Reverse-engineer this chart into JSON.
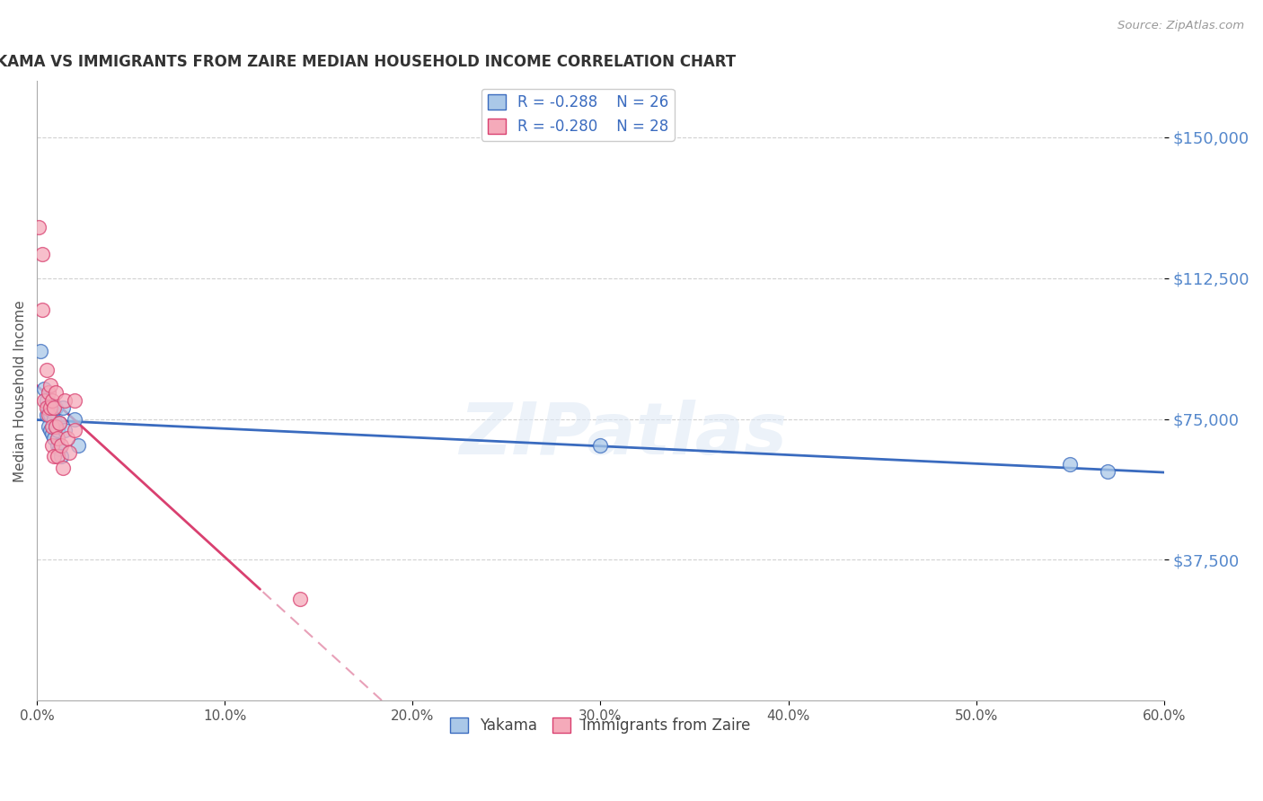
{
  "title": "YAKAMA VS IMMIGRANTS FROM ZAIRE MEDIAN HOUSEHOLD INCOME CORRELATION CHART",
  "source": "Source: ZipAtlas.com",
  "ylabel": "Median Household Income",
  "ytick_labels": [
    "$37,500",
    "$75,000",
    "$112,500",
    "$150,000"
  ],
  "ytick_values": [
    37500,
    75000,
    112500,
    150000
  ],
  "ymin": 0,
  "ymax": 165000,
  "xmin": 0.0,
  "xmax": 0.6,
  "legend_r1": "-0.288",
  "legend_n1": "26",
  "legend_r2": "-0.280",
  "legend_n2": "28",
  "series1_label": "Yakama",
  "series2_label": "Immigrants from Zaire",
  "color1": "#aac8e8",
  "color2": "#f5aaba",
  "line1_color": "#3a6bbf",
  "line2_color": "#d94070",
  "line2_dashed_color": "#e8a0b8",
  "background": "#ffffff",
  "grid_color": "#cccccc",
  "title_color": "#333333",
  "source_color": "#999999",
  "ytick_color": "#5588cc",
  "xtick_color": "#555555",
  "yakama_x": [
    0.002,
    0.004,
    0.005,
    0.005,
    0.006,
    0.006,
    0.007,
    0.007,
    0.008,
    0.008,
    0.009,
    0.009,
    0.01,
    0.01,
    0.011,
    0.011,
    0.012,
    0.012,
    0.013,
    0.014,
    0.015,
    0.02,
    0.022,
    0.3,
    0.55,
    0.57
  ],
  "yakama_y": [
    93000,
    83000,
    80000,
    76000,
    78000,
    73000,
    76000,
    72000,
    77000,
    71000,
    75000,
    70000,
    78000,
    73000,
    72000,
    68000,
    74000,
    67000,
    65000,
    78000,
    72000,
    75000,
    68000,
    68000,
    63000,
    61000
  ],
  "zaire_x": [
    0.001,
    0.003,
    0.003,
    0.004,
    0.005,
    0.005,
    0.006,
    0.006,
    0.007,
    0.007,
    0.008,
    0.008,
    0.008,
    0.009,
    0.009,
    0.01,
    0.01,
    0.011,
    0.011,
    0.012,
    0.013,
    0.014,
    0.015,
    0.016,
    0.017,
    0.02,
    0.02,
    0.14
  ],
  "zaire_y": [
    126000,
    119000,
    104000,
    80000,
    88000,
    78000,
    82000,
    76000,
    84000,
    78000,
    80000,
    73000,
    68000,
    78000,
    65000,
    82000,
    73000,
    70000,
    65000,
    74000,
    68000,
    62000,
    80000,
    70000,
    66000,
    80000,
    72000,
    27000
  ],
  "solid_line_end_x": 0.12,
  "marker_size": 130
}
